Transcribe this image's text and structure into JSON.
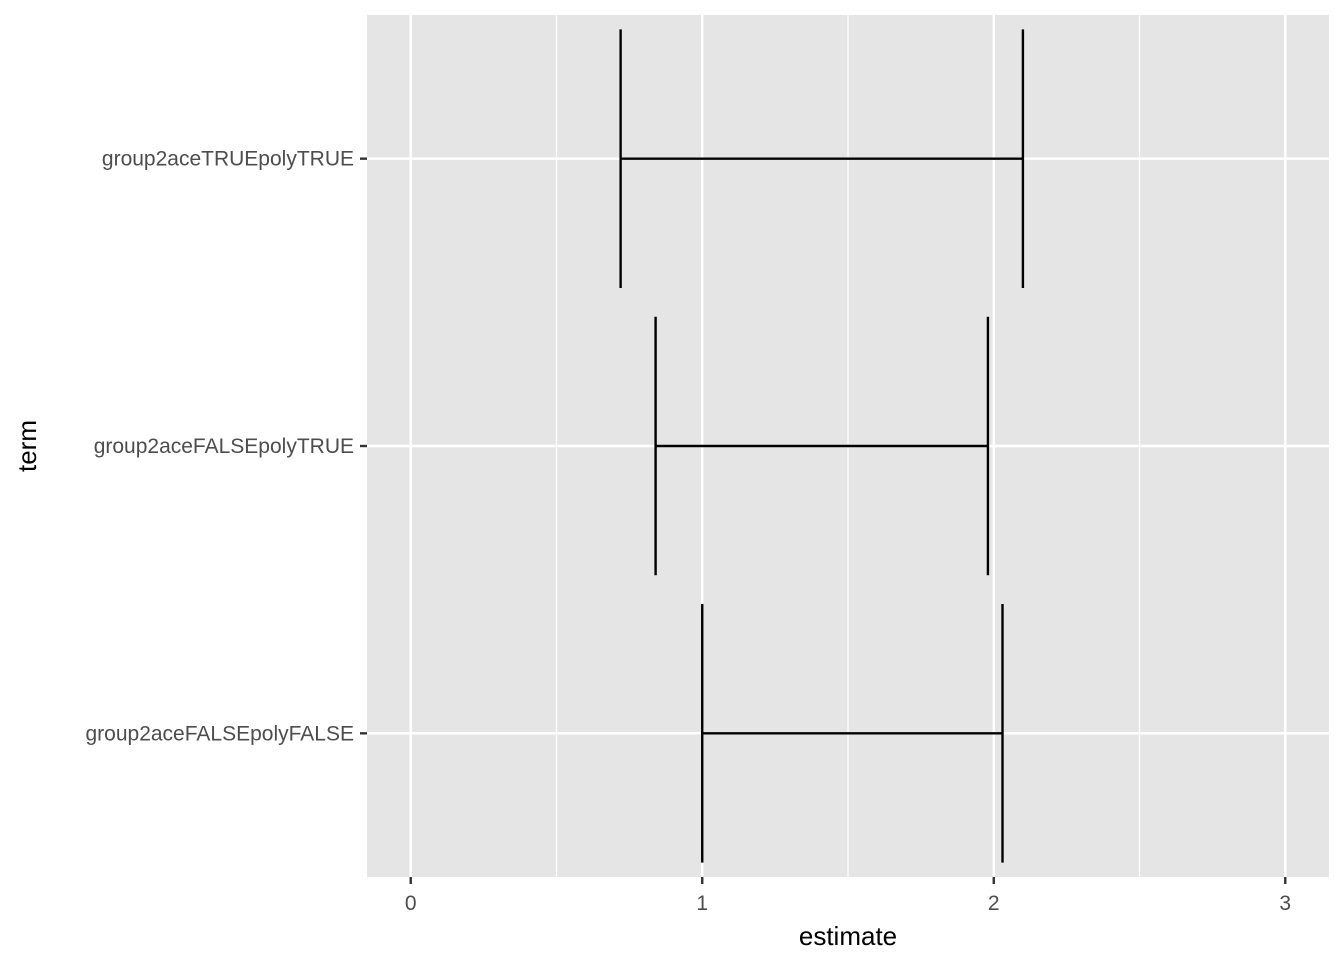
{
  "chart_data": {
    "type": "errorbar",
    "title": "",
    "xlabel": "estimate",
    "ylabel": "term",
    "xlim": [
      -0.15,
      3.15
    ],
    "x_ticks": [
      0,
      1,
      2,
      3
    ],
    "x_tick_labels": [
      "0",
      "1",
      "2",
      "3"
    ],
    "categories": [
      "group2aceTRUEpolyTRUE",
      "group2aceFALSEpolyTRUE",
      "group2aceFALSEpolyFALSE"
    ],
    "series": [
      {
        "term": "group2aceTRUEpolyTRUE",
        "low": 0.72,
        "high": 2.1
      },
      {
        "term": "group2aceFALSEpolyTRUE",
        "low": 0.84,
        "high": 1.98
      },
      {
        "term": "group2aceFALSEpolyFALSE",
        "low": 1.0,
        "high": 2.03
      }
    ],
    "grid": true,
    "colors": {
      "panel": "#e5e5e5",
      "grid": "#ffffff",
      "bars": "#000000",
      "tick_text": "#4d4d4d",
      "title_text": "#000000"
    }
  }
}
